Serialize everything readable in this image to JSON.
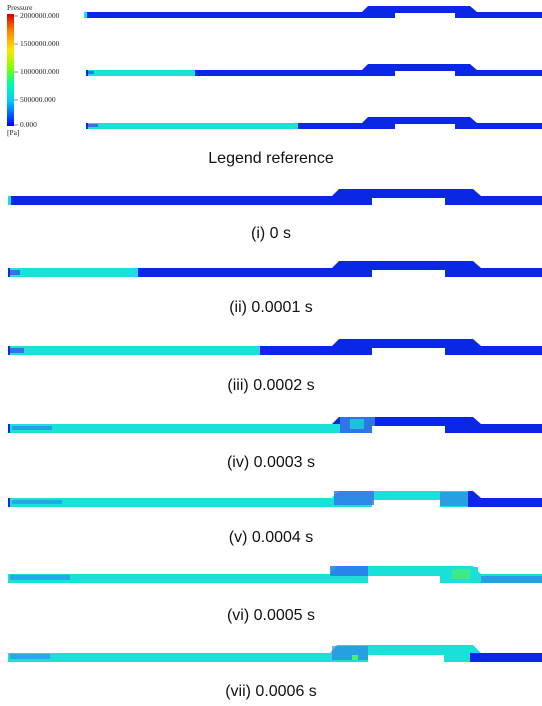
{
  "legend": {
    "title": "Pressure",
    "unit": "[Pa]",
    "ticks": [
      "2000000.000",
      "1500000.000",
      "1000000.000",
      "500000.000",
      "0.000"
    ],
    "colors": [
      "#d40000",
      "#ff8000",
      "#ffe600",
      "#80ff00",
      "#00ffa0",
      "#00c8ff",
      "#0000ff"
    ]
  },
  "colors": {
    "low_pressure": "#0a26e6",
    "mid_pressure": "#19e0d9",
    "transition_blue": "#2f74e8",
    "accent_green": "#55ee55"
  },
  "captions": {
    "legend_reference": "Legend reference",
    "frames": [
      "(i) 0 s",
      "(ii) 0.0001 s",
      "(iii) 0.0002 s",
      "(iv) 0.0003 s",
      "(v) 0.0004 s",
      "(vi) 0.0005 s",
      "(vii) 0.0006 s"
    ]
  }
}
